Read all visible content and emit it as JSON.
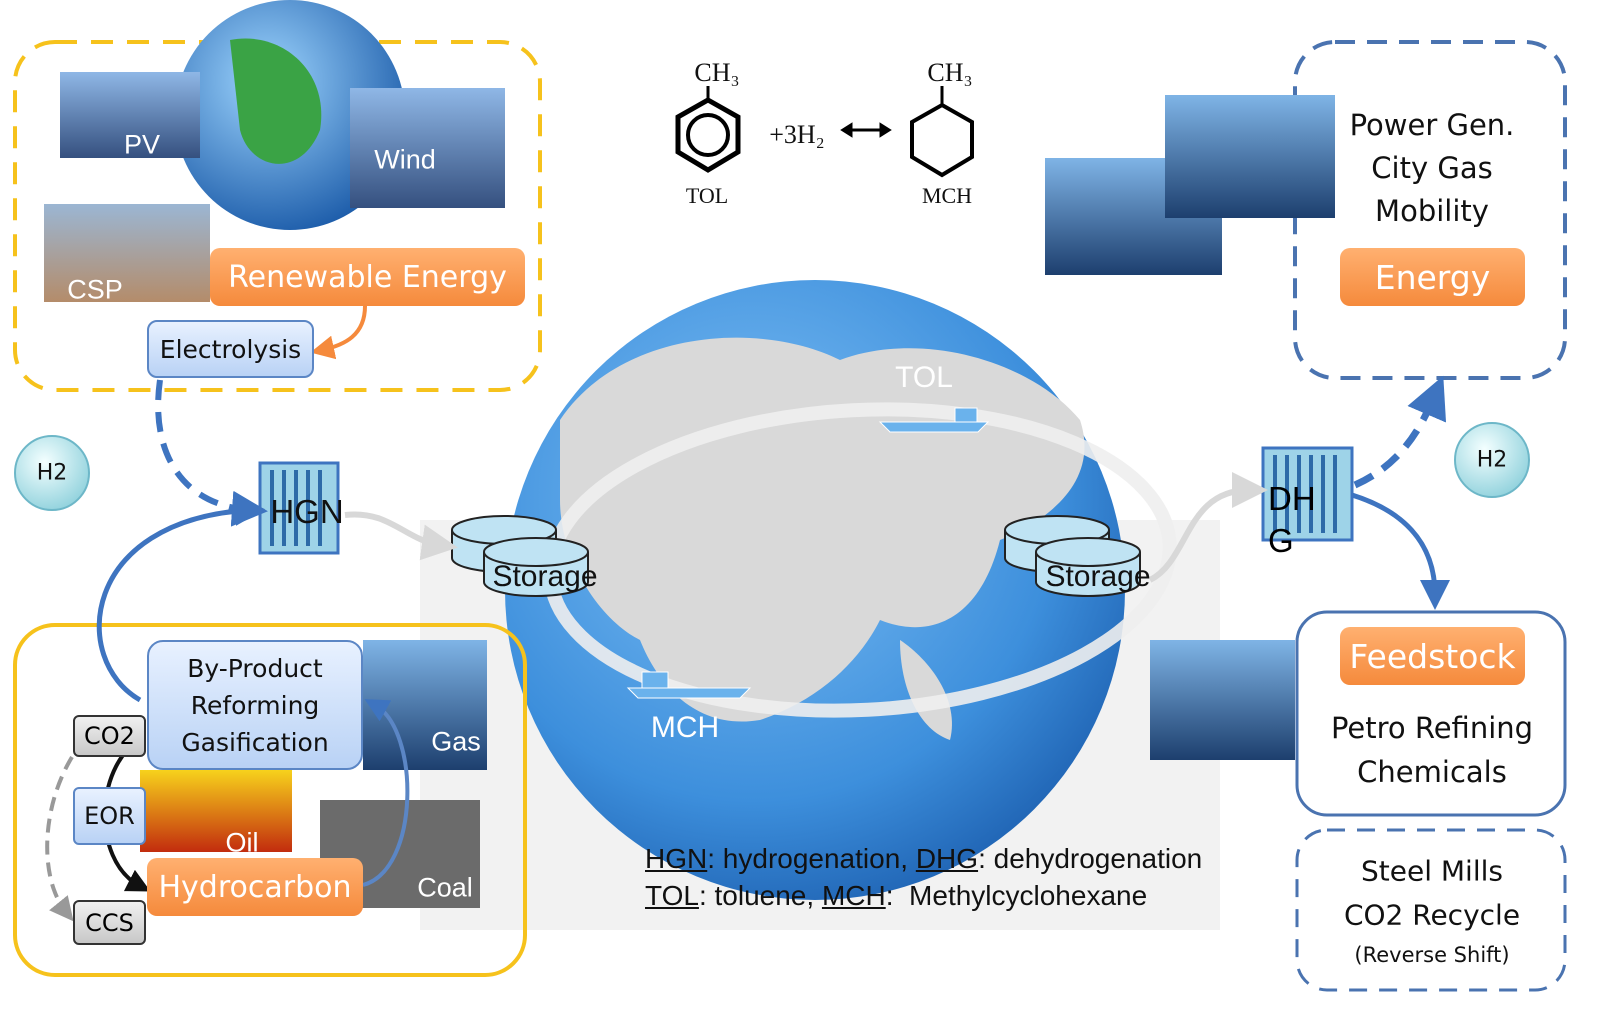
{
  "chemistry": {
    "toluene_group": "CH₃",
    "mch_group": "CH₃",
    "reagent": "+3H₂",
    "toluene_label": "TOL",
    "mch_label": "MCH"
  },
  "renewable": {
    "pv": "PV",
    "wind": "Wind",
    "csp": "CSP",
    "title": "Renewable Energy",
    "electrolysis": "Electrolysis"
  },
  "h2_left": "H2",
  "h2_right": "H2",
  "hgn": "HGN",
  "dhg": "DHG",
  "storage_left": "Storage",
  "storage_right": "Storage",
  "globe": {
    "tol": "TOL",
    "mch": "MCH"
  },
  "energy": {
    "lines": [
      "Power Gen.",
      "City Gas",
      "Mobility"
    ],
    "title": "Energy"
  },
  "feedstock": {
    "title": "Feedstock",
    "lines": [
      "Petro Refining",
      "Chemicals"
    ]
  },
  "steel": {
    "lines": [
      "Steel Mills",
      "CO2 Recycle"
    ],
    "note": "(Reverse Shift)"
  },
  "fossil": {
    "process": [
      "By-Product",
      "Reforming",
      "Gasification"
    ],
    "gas": "Gas",
    "oil": "Oil",
    "coal": "Coal",
    "title": "Hydrocarbon",
    "co2": "CO2",
    "eor": "EOR",
    "ccs": "CCS"
  },
  "legend": [
    {
      "abbr": "HGN",
      "text": ": hydrogenation, "
    },
    {
      "abbr": "DHG",
      "text": ": dehydrogenation"
    },
    {
      "abbr": "TOL",
      "text": ": toluene, "
    },
    {
      "abbr": "MCH",
      "text": ":  Methylcyclohexane"
    }
  ]
}
